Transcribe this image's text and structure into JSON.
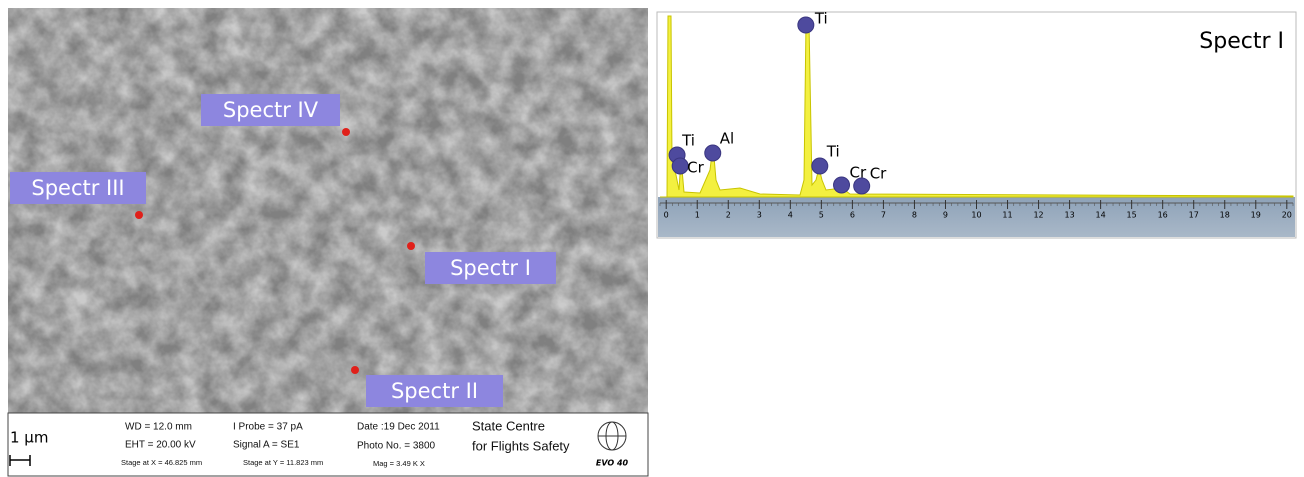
{
  "sem": {
    "spots": [
      "Spectr I",
      "Spectr II",
      "Spectr III",
      "Spectr IV"
    ],
    "scale_bar": "1 µm",
    "info": [
      "WD = 12.0 mm",
      "EHT = 20.00 kV",
      "Stage at X = 46.825 mm",
      "I Probe =    37 pA",
      "Signal A = SE1",
      "Stage at Y = 11.823 mm",
      "Date :19 Dec 2011",
      "Photo No. = 3800",
      "Mag =  3.49 K X",
      "State Centre",
      "for Flights Safety"
    ],
    "logo": "EVO 40"
  },
  "chart_data": {
    "type": "spectrum",
    "title": "Spectr I",
    "xlim": [
      -0.2,
      20.2
    ],
    "xticks": [
      0,
      1,
      2,
      3,
      4,
      5,
      6,
      7,
      8,
      9,
      10,
      11,
      12,
      13,
      14,
      15,
      16,
      17,
      18,
      19,
      20
    ],
    "peaks": {
      "labels": [
        "Ti",
        "Ti",
        "Cr",
        "Al",
        "Ti",
        "Cr",
        "Cr"
      ],
      "x": [
        4.5,
        0.35,
        0.45,
        1.5,
        4.95,
        5.65,
        6.3
      ]
    }
  }
}
